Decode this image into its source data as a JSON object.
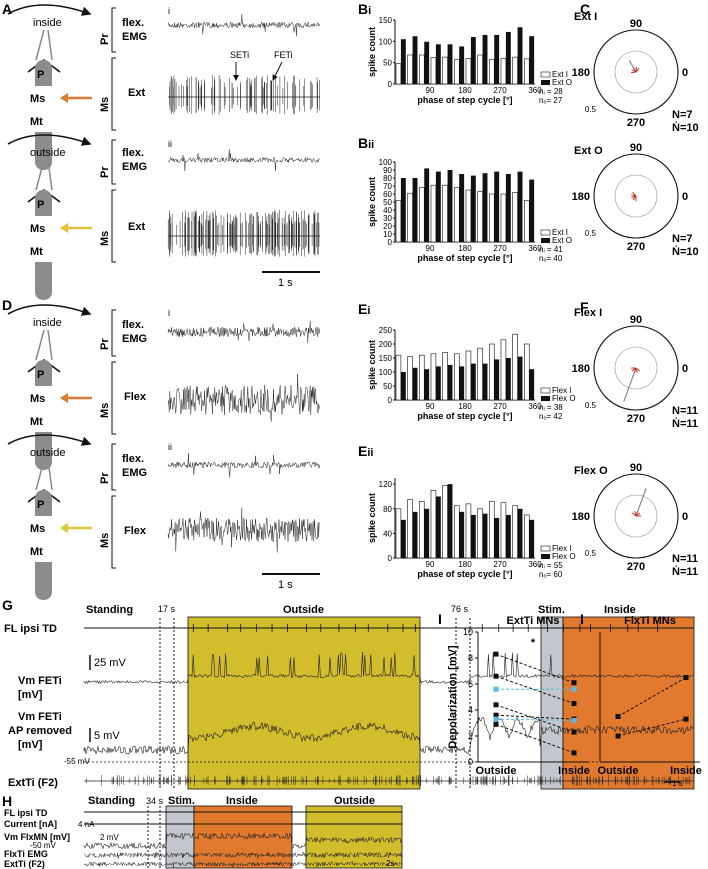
{
  "colors": {
    "outside": "#d2bd2c",
    "inside": "#e17a2f",
    "stim": "#c3c6cc",
    "arrow_inside": "#e07b2e",
    "arrow_outside": "#e2c33a",
    "trace": "#222222",
    "blue": "#59b8e3",
    "leg": "#8c8c8c",
    "circle": "#aaaaaa",
    "vector": "#c0392b"
  },
  "panel_labels": {
    "A": "A",
    "C": "C",
    "D": "D",
    "F": "F",
    "G": "G",
    "H": "H",
    "Ii": "Ii",
    "Iiii": "Iiii"
  },
  "schematic": {
    "inside": "inside",
    "outside": "outside",
    "P": "P",
    "Ms": "Ms",
    "Mt": "Mt"
  },
  "traces_AD": {
    "Pr": "Pr",
    "Ms": "Ms",
    "flex": "flex.",
    "emg": "EMG",
    "Ext": "Ext",
    "Flex": "Flex",
    "i": "i",
    "ii": "ii",
    "SETi": "SETi",
    "FETi": "FETi",
    "scalebar": "1 s"
  },
  "histograms": [
    {
      "panel": "Bi",
      "ylabel": "spike count",
      "xlabel": "phase of step cycle [°]",
      "y_ticks": [
        "0",
        "50",
        "100",
        "150"
      ],
      "ymax": 150,
      "x_ticks": [
        "90",
        "180",
        "270",
        "360"
      ],
      "legend_I": "Ext I",
      "legend_O": "Ext O",
      "n_i": "nᵢ = 28",
      "n_o": "nₒ= 27",
      "I": [
        48,
        68,
        68,
        62,
        63,
        57,
        60,
        68,
        58,
        60,
        63,
        59
      ],
      "O": [
        105,
        112,
        99,
        93,
        93,
        88,
        110,
        115,
        115,
        122,
        133,
        112
      ]
    },
    {
      "panel": "Bii",
      "ylabel": "spike count",
      "xlabel": "phase of step cycle [°]",
      "y_ticks": [
        "0",
        "10",
        "20",
        "30",
        "40",
        "50",
        "60",
        "70",
        "80",
        "90",
        "100"
      ],
      "ymax": 100,
      "x_ticks": [
        "90",
        "180",
        "270",
        "360"
      ],
      "legend_I": "Ext I",
      "legend_O": "Ext O",
      "n_i": "nᵢ = 41",
      "n_o": "nₒ= 40",
      "I": [
        52,
        61,
        68,
        71,
        71,
        68,
        65,
        63,
        60,
        60,
        62,
        52
      ],
      "O": [
        80,
        80,
        92,
        88,
        90,
        85,
        83,
        86,
        88,
        85,
        88,
        78
      ]
    },
    {
      "panel": "Ei",
      "ylabel": "spike count",
      "xlabel": "phase of step cycle [°]",
      "y_ticks": [
        "0",
        "50",
        "100",
        "150",
        "200",
        "250"
      ],
      "ymax": 250,
      "x_ticks": [
        "90",
        "180",
        "270",
        "360"
      ],
      "legend_I": "Flex I",
      "legend_O": "Flex O",
      "n_i": "nᵢ = 38",
      "n_o": "nₒ= 42",
      "I": [
        160,
        155,
        160,
        165,
        170,
        165,
        175,
        185,
        200,
        215,
        235,
        200
      ],
      "O": [
        100,
        115,
        110,
        120,
        125,
        120,
        130,
        130,
        145,
        150,
        155,
        110
      ]
    },
    {
      "panel": "Eii",
      "ylabel": "spike count",
      "xlabel": "phase of step cycle [°]",
      "y_ticks": [
        "0",
        "40",
        "80",
        "120"
      ],
      "ymax": 130,
      "x_ticks": [
        "90",
        "180",
        "270",
        "360"
      ],
      "legend_I": "Flex I",
      "legend_O": "Flex O",
      "n_i": "nᵢ = 55",
      "n_o": "nₒ= 60",
      "I": [
        80,
        95,
        92,
        110,
        118,
        85,
        88,
        80,
        92,
        90,
        85,
        70
      ],
      "O": [
        62,
        75,
        80,
        100,
        120,
        75,
        70,
        72,
        65,
        70,
        80,
        62
      ]
    }
  ],
  "polars": [
    {
      "title": "Ext I",
      "N": "N=7",
      "Nd": "Ṅ=10",
      "angle": 120,
      "length": 0.32
    },
    {
      "title": "Ext O",
      "N": "N=7",
      "Nd": "Ṅ=10",
      "angle": 200,
      "length": 0.08
    },
    {
      "title": "Flex I",
      "N": "N=11",
      "Nd": "Ṅ=11",
      "angle": 250,
      "length": 0.85
    },
    {
      "title": "Flex O",
      "N": "N=11",
      "Nd": "Ṅ=11",
      "angle": 70,
      "length": 0.7
    }
  ],
  "polar_axis": {
    "t90": "90",
    "t180": "180",
    "t0": "0",
    "t270": "270",
    "r": "0.5"
  },
  "panelG": {
    "standing": "Standing",
    "t17": "17 s",
    "outside": "Outside",
    "t76": "76 s",
    "stim": "Stim.",
    "inside": "Inside",
    "fl": "FL ipsi TD",
    "vm1a": "Vm FETi",
    "vm1b": "[mV]",
    "sc1": "25 mV",
    "vm2a": "Vm FETi",
    "vm2b": "AP removed",
    "vm2c": "[mV]",
    "sc2": "5 mV",
    "rest": "-55 mV",
    "ext": "ExtTi (F2)",
    "time": "1 s"
  },
  "panelH": {
    "standing": "Standing",
    "t34": "34 s",
    "stim": "Stim.",
    "inside": "Inside",
    "outside": "Outside",
    "fl": "FL ipsi TD",
    "current": "Current [nA]",
    "sc_i": "4 nA",
    "vm_a": "Vm FlxMN",
    "vm_b": "[mV]",
    "sc_v": "2 mV",
    "rest": "-50 mV",
    "flxemg": "FlxTi EMG",
    "ext": "ExtTi (F2)",
    "time": "2s"
  },
  "panelIi": {
    "title": "ExtTi MNs",
    "star": "*",
    "ylabel": "Depolarization [mV]",
    "y_ticks": [
      "0",
      "2",
      "4",
      "6",
      "8",
      "10"
    ],
    "x_out": "Outside",
    "x_in": "Inside",
    "pairs": [
      [
        8.3,
        6.1
      ],
      [
        6.6,
        4.5
      ],
      [
        5.6,
        5.6
      ],
      [
        4.4,
        2.3
      ],
      [
        3.6,
        3.3
      ],
      [
        3.3,
        3.2
      ],
      [
        2.9,
        0.7
      ]
    ],
    "blue_pairs": [
      2,
      5
    ]
  },
  "panelIiii": {
    "title": "FlxTi MNs",
    "x_out": "Outside",
    "x_in": "Inside",
    "pairs": [
      [
        3.5,
        6.5
      ],
      [
        2.0,
        3.3
      ]
    ]
  }
}
